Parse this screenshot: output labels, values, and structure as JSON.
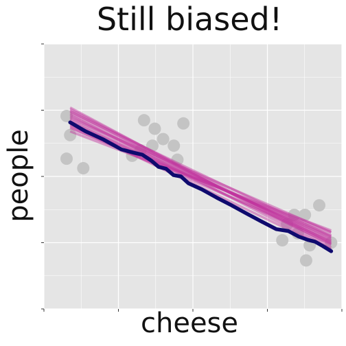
{
  "chart_data": {
    "type": "scatter",
    "title": "Still biased!",
    "xlabel": "cheese",
    "ylabel": "people",
    "xlim": [
      0,
      10
    ],
    "ylim": [
      0,
      10
    ],
    "grid": true,
    "tick_labels_shown": false,
    "colors": {
      "panel": "#e5e5e5",
      "grid": "#ffffff",
      "points": "#c4c4c4",
      "bootstrap_lines": "#c2349d",
      "mean_line": "#0f0a6e"
    },
    "points": [
      {
        "x": 0.76,
        "y": 7.28
      },
      {
        "x": 0.88,
        "y": 6.56
      },
      {
        "x": 0.76,
        "y": 5.67
      },
      {
        "x": 1.32,
        "y": 5.31
      },
      {
        "x": 3.36,
        "y": 7.12
      },
      {
        "x": 3.72,
        "y": 6.8
      },
      {
        "x": 4.68,
        "y": 7.0
      },
      {
        "x": 2.96,
        "y": 5.78
      },
      {
        "x": 3.24,
        "y": 5.98
      },
      {
        "x": 3.64,
        "y": 6.16
      },
      {
        "x": 4.0,
        "y": 6.41
      },
      {
        "x": 4.36,
        "y": 6.16
      },
      {
        "x": 4.48,
        "y": 5.63
      },
      {
        "x": 8.16,
        "y": 3.2
      },
      {
        "x": 8.4,
        "y": 3.55
      },
      {
        "x": 8.76,
        "y": 3.55
      },
      {
        "x": 9.24,
        "y": 3.91
      },
      {
        "x": 8.52,
        "y": 2.85
      },
      {
        "x": 8.0,
        "y": 2.59
      },
      {
        "x": 8.92,
        "y": 2.4
      },
      {
        "x": 9.64,
        "y": 2.5
      },
      {
        "x": 8.8,
        "y": 1.83
      }
    ],
    "mean_line": {
      "x": [
        0.88,
        1.4,
        2.0,
        2.6,
        3.0,
        3.3,
        3.6,
        3.85,
        4.1,
        4.35,
        4.6,
        4.85,
        5.3,
        5.8,
        6.3,
        6.8,
        7.3,
        7.8,
        8.2,
        8.55,
        8.85,
        9.1,
        9.35,
        9.64
      ],
      "y": [
        7.04,
        6.7,
        6.39,
        6.02,
        5.9,
        5.82,
        5.6,
        5.36,
        5.29,
        5.05,
        5.0,
        4.74,
        4.51,
        4.2,
        3.91,
        3.6,
        3.3,
        3.01,
        2.94,
        2.73,
        2.61,
        2.54,
        2.38,
        2.18
      ]
    },
    "bootstrap_lines": [
      {
        "x": [
          0.88,
          9.64
        ],
        "y": [
          7.6,
          2.33
        ]
      },
      {
        "x": [
          0.88,
          9.64
        ],
        "y": [
          7.48,
          2.42
        ]
      },
      {
        "x": [
          0.88,
          9.64
        ],
        "y": [
          7.38,
          2.52
        ]
      },
      {
        "x": [
          0.88,
          9.64
        ],
        "y": [
          7.26,
          2.6
        ]
      },
      {
        "x": [
          0.88,
          9.64
        ],
        "y": [
          7.14,
          2.66
        ]
      },
      {
        "x": [
          0.88,
          9.64
        ],
        "y": [
          7.02,
          2.71
        ]
      },
      {
        "x": [
          0.88,
          9.64
        ],
        "y": [
          6.92,
          2.78
        ]
      },
      {
        "x": [
          0.88,
          9.64
        ],
        "y": [
          6.82,
          2.88
        ]
      },
      {
        "x": [
          0.88,
          9.64
        ],
        "y": [
          6.7,
          2.96
        ]
      },
      {
        "x": [
          0.88,
          9.64
        ],
        "y": [
          7.32,
          2.26
        ]
      },
      {
        "x": [
          0.88,
          9.64
        ],
        "y": [
          7.08,
          2.45
        ]
      },
      {
        "x": [
          0.88,
          9.64
        ],
        "y": [
          6.96,
          2.22
        ]
      },
      {
        "x": [
          0.88,
          9.64
        ],
        "y": [
          7.44,
          2.74
        ]
      },
      {
        "x": [
          0.88,
          9.64
        ],
        "y": [
          6.86,
          2.56
        ]
      },
      {
        "x": [
          0.88,
          9.64
        ],
        "y": [
          7.2,
          2.9
        ]
      },
      {
        "x": [
          0.88,
          9.64
        ],
        "y": [
          7.54,
          2.48
        ]
      }
    ]
  }
}
